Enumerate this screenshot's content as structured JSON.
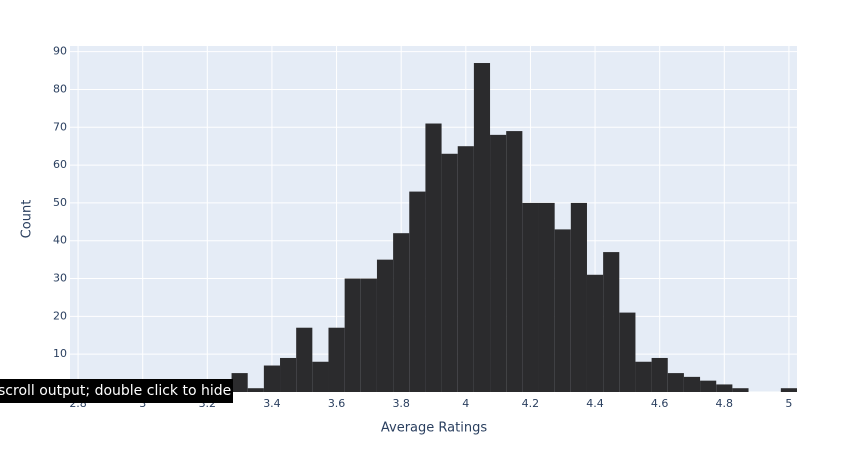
{
  "chart_data": {
    "type": "histogram",
    "x_label": "Average Ratings",
    "y_label": "Count",
    "bins": [
      2.775,
      2.825,
      2.875,
      2.925,
      2.975,
      3.025,
      3.075,
      3.125,
      3.175,
      3.225,
      3.275,
      3.325,
      3.375,
      3.425,
      3.475,
      3.525,
      3.575,
      3.625,
      3.675,
      3.725,
      3.775,
      3.825,
      3.875,
      3.925,
      3.975,
      4.025,
      4.075,
      4.125,
      4.175,
      4.225,
      4.275,
      4.325,
      4.375,
      4.425,
      4.475,
      4.525,
      4.575,
      4.625,
      4.675,
      4.725,
      4.775,
      4.825,
      4.875,
      4.925,
      4.975,
      5.025
    ],
    "values": [
      0,
      0,
      0,
      0,
      1,
      0,
      0,
      1,
      1,
      2,
      5,
      1,
      7,
      9,
      17,
      8,
      17,
      30,
      30,
      35,
      42,
      53,
      71,
      63,
      65,
      87,
      68,
      69,
      50,
      50,
      43,
      50,
      31,
      37,
      21,
      8,
      9,
      5,
      4,
      3,
      2,
      1,
      0,
      0,
      1
    ],
    "color": "#2b2b2d",
    "xlim": [
      2.775,
      5.025
    ],
    "ylim": [
      0,
      91.5
    ],
    "xticks": [
      2.8,
      3,
      3.2,
      3.4,
      3.6,
      3.8,
      4,
      4.2,
      4.4,
      4.6,
      4.8,
      5
    ],
    "yticks": [
      0,
      10,
      20,
      30,
      40,
      50,
      60,
      70,
      80,
      90
    ],
    "grid": true
  },
  "tooltip": "scroll output; double click to hide"
}
